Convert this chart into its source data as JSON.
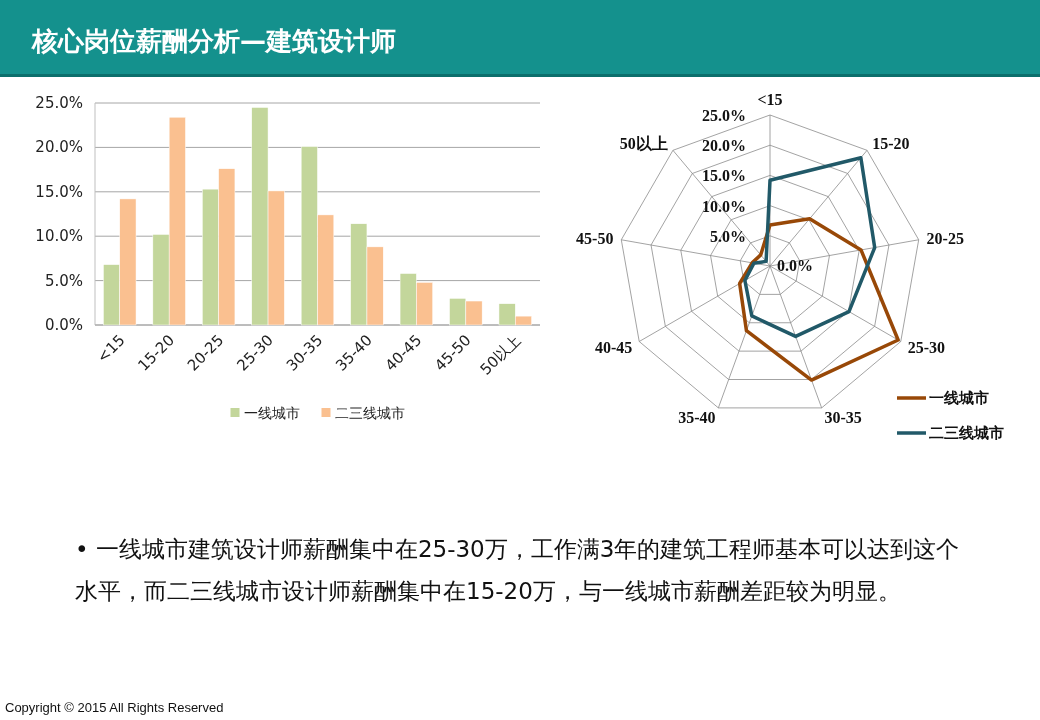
{
  "chart_data": [
    {
      "type": "bar",
      "title": "核心岗位薪酬分析—建筑设计师",
      "categories": [
        "<15",
        "15-20",
        "20-25",
        "25-30",
        "30-35",
        "35-40",
        "40-45",
        "45-50",
        "50以上"
      ],
      "series": [
        {
          "name": "一线城市",
          "color": "#c3d69b",
          "values": [
            6.8,
            10.2,
            15.3,
            24.5,
            20.1,
            11.4,
            5.8,
            3.0,
            2.4
          ]
        },
        {
          "name": "二三线城市",
          "color": "#fac090",
          "values": [
            14.2,
            23.4,
            17.6,
            15.1,
            12.4,
            8.8,
            4.8,
            2.7,
            1.0
          ]
        }
      ],
      "ylim": [
        0,
        25
      ],
      "yticks": [
        {
          "value": 0,
          "label": "0.0%"
        },
        {
          "value": 5,
          "label": "5.0%"
        },
        {
          "value": 10,
          "label": "10.0%"
        },
        {
          "value": 15,
          "label": "15.0%"
        },
        {
          "value": 20,
          "label": "20.0%"
        },
        {
          "value": 25,
          "label": "25.0%"
        }
      ],
      "grid": "y",
      "legend": "bottom"
    },
    {
      "type": "radar",
      "categories": [
        "<15",
        "15-20",
        "20-25",
        "25-30",
        "30-35",
        "35-40",
        "40-45",
        "45-50",
        "50以上"
      ],
      "series": [
        {
          "name": "一线城市",
          "color": "#984807",
          "values": [
            6.8,
            10.2,
            15.3,
            24.5,
            20.1,
            11.4,
            5.8,
            3.0,
            2.4
          ]
        },
        {
          "name": "二三线城市",
          "color": "#215968",
          "values": [
            14.2,
            23.4,
            17.6,
            15.1,
            12.4,
            8.8,
            4.8,
            2.7,
            1.0
          ]
        }
      ],
      "ylim": [
        0,
        25
      ],
      "yticks": [
        {
          "value": 0,
          "label": "0.0%"
        },
        {
          "value": 5,
          "label": "5.0%"
        },
        {
          "value": 10,
          "label": "10.0%"
        },
        {
          "value": 15,
          "label": "15.0%"
        },
        {
          "value": 20,
          "label": "20.0%"
        },
        {
          "value": 25,
          "label": "25.0%"
        }
      ],
      "grid": true,
      "legend": "bottom right"
    },
    {
      "type": "other",
      "annotations": [
        "• 一线城市建筑设计师薪酬集中在25-30万，工作满3年的建筑工程师基本可以达到这个水平，而二三线城市设计师薪酬集中在15-20万，与一线城市薪酬差距较为明显。",
        "Copyright © 2015  All Rights Reserved"
      ]
    }
  ]
}
